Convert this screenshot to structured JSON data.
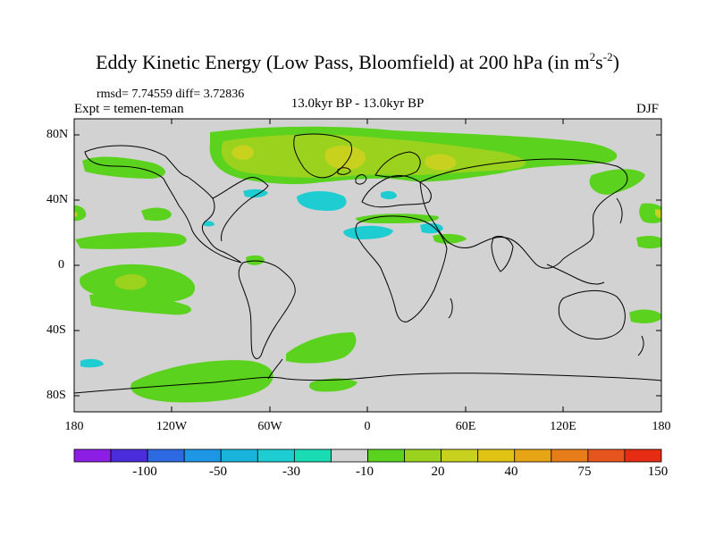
{
  "title": {
    "main": "Eddy Kinetic Energy (Low Pass, Bloomfield) at 200 hPa (in m",
    "sup1": "2",
    "mid": "s",
    "sup2": "-2",
    "close": ")"
  },
  "stats": "rmsd= 7.74559 diff= 3.72836",
  "experiment": "Expt = temen-teman",
  "period": "13.0kyr BP - 13.0kyr BP",
  "season": "DJF",
  "axes": {
    "lat_labels": [
      "80N",
      "40N",
      "0",
      "40S",
      "80S"
    ],
    "lon_labels": [
      "180",
      "120W",
      "60W",
      "0",
      "60E",
      "120E",
      "180"
    ]
  },
  "colorbar": {
    "labels": [
      "-100",
      "-50",
      "-30",
      "-10",
      "20",
      "40",
      "75",
      "150"
    ],
    "colors": [
      "#8c1ee6",
      "#4b2ddc",
      "#2d69e1",
      "#1e96e6",
      "#19b4dc",
      "#1ecdd2",
      "#19dcb4",
      "#d2d2d2",
      "#5ad21e",
      "#9bd21e",
      "#c8d21e",
      "#e1c314",
      "#e6a514",
      "#e67d19",
      "#e6551e",
      "#e62d14"
    ]
  },
  "map_colors": {
    "ocean_land": "#d2d2d2",
    "green": "#5ad21e",
    "yellow_green": "#9bd21e",
    "olive": "#c8d21e",
    "cyan": "#1ecdd2",
    "coast": "#000000"
  }
}
